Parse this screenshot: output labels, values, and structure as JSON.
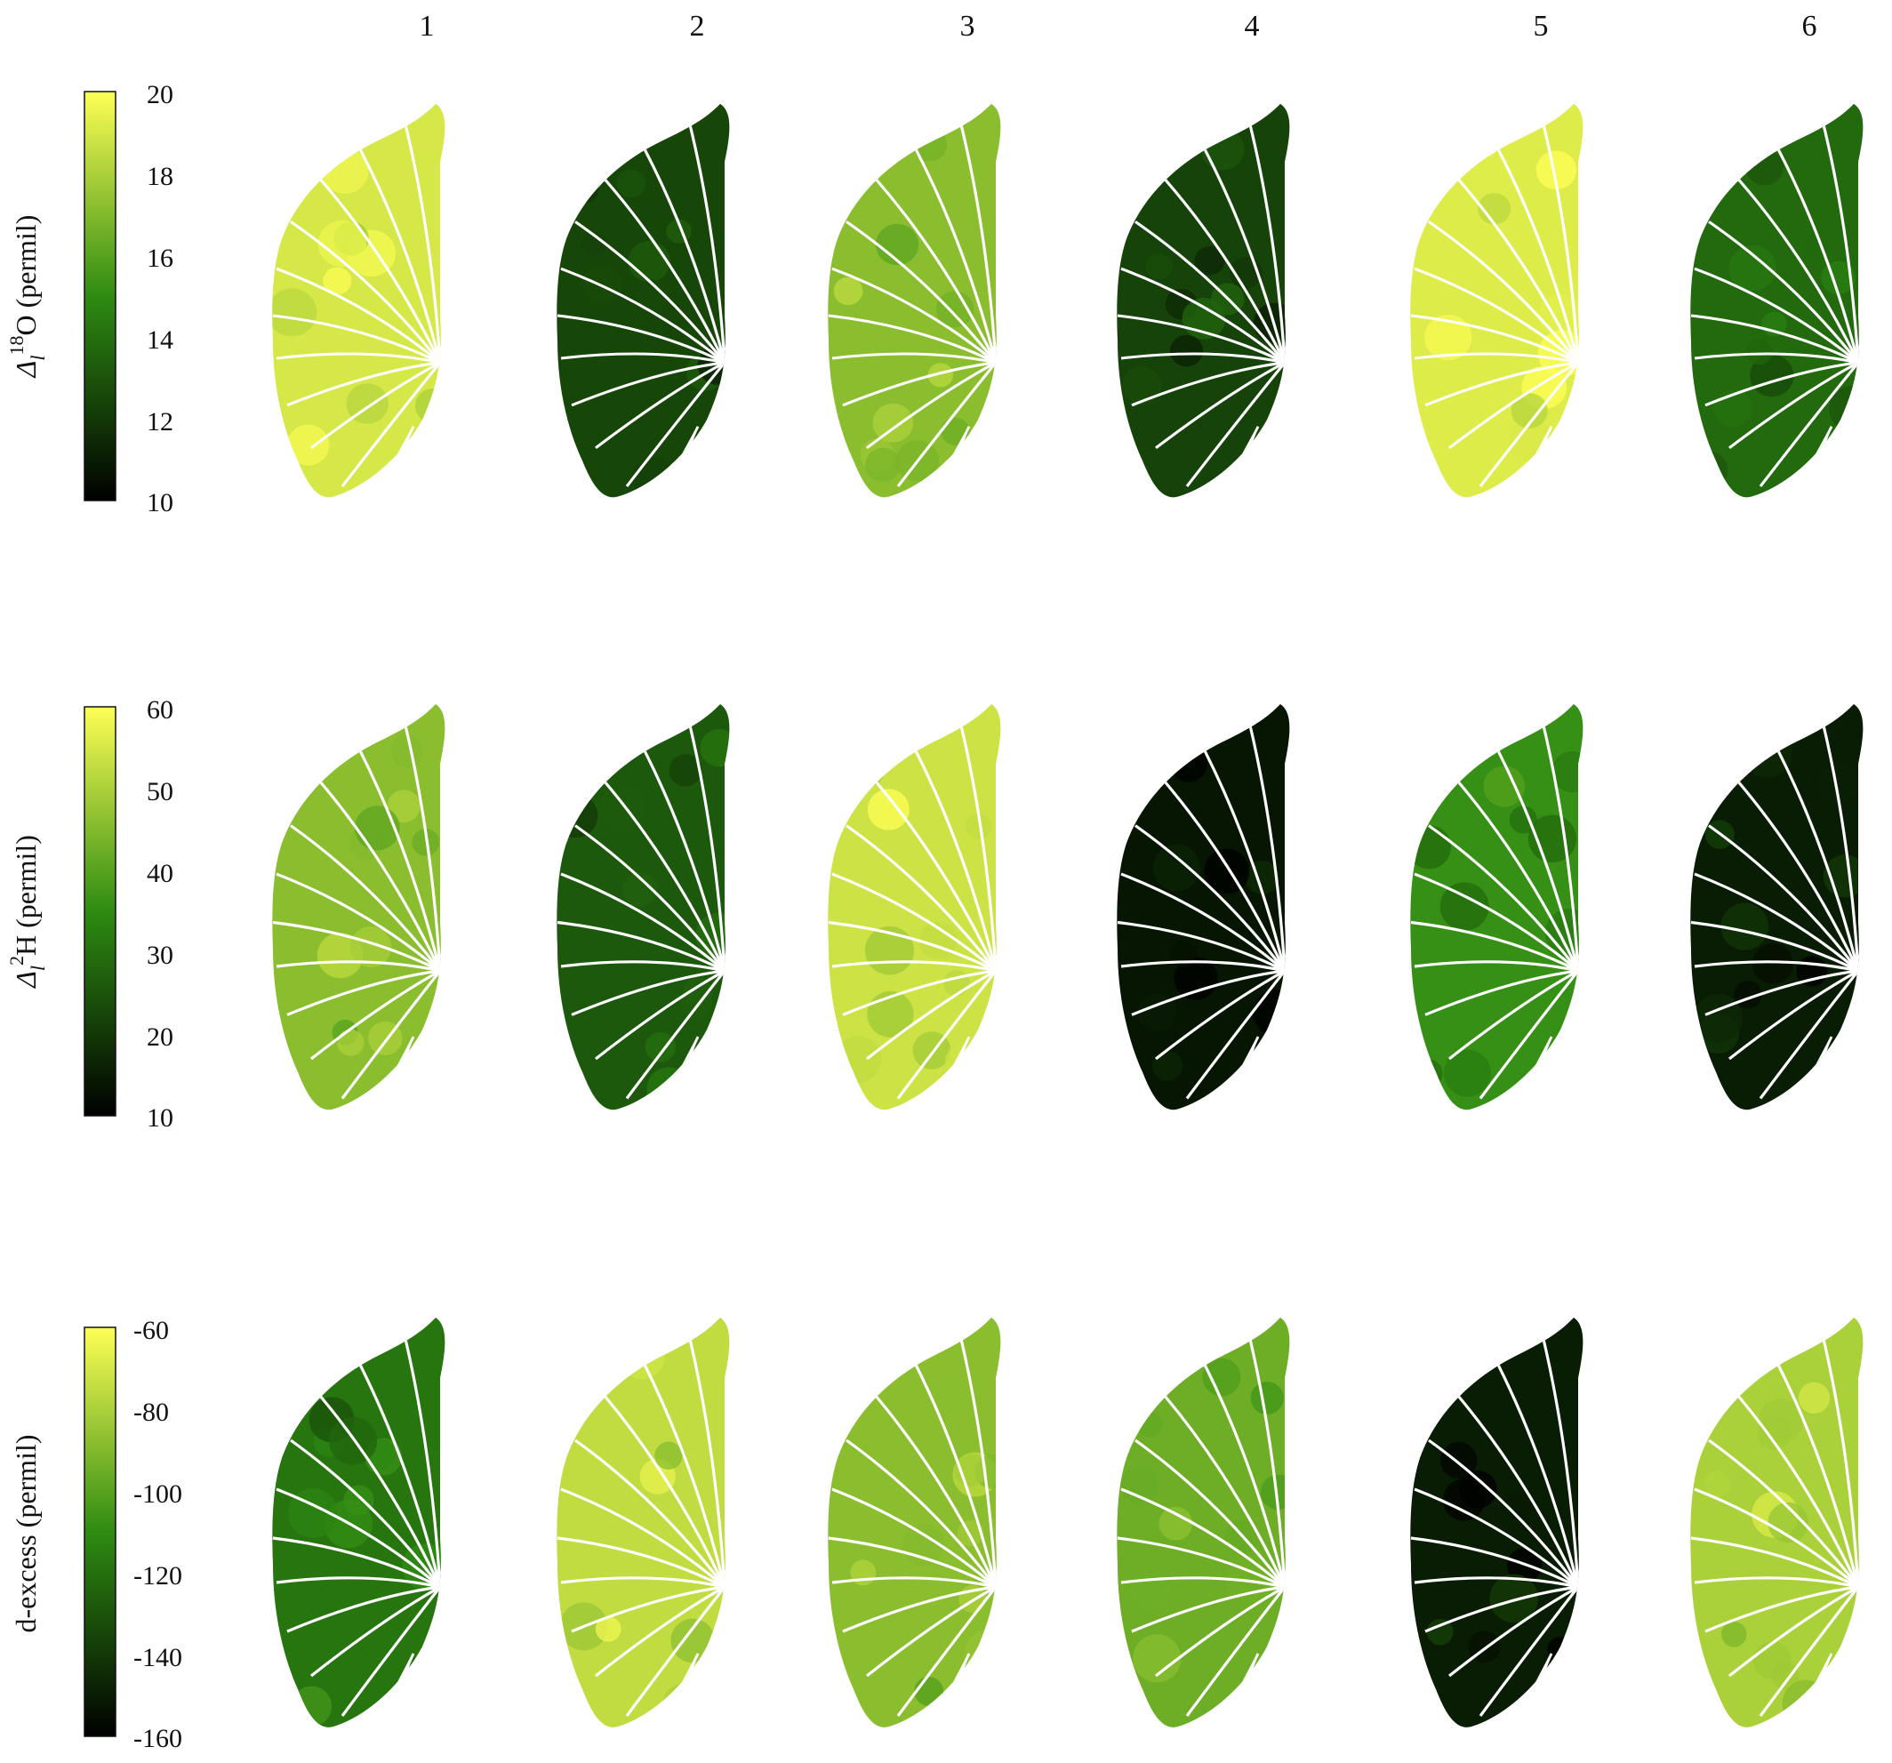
{
  "chart_data": {
    "type": "heatmap",
    "columns": [
      "1",
      "2",
      "3",
      "4",
      "5",
      "6"
    ],
    "colormap": {
      "low": "#000000",
      "mid": "#2e8b12",
      "high": "#ffff55"
    },
    "panels": [
      {
        "label_main": "Δ",
        "label_sup": "18",
        "label_sub": "l",
        "label_rest": "O  (permil)",
        "range": [
          10,
          20
        ],
        "ticks": [
          "20",
          "18",
          "16",
          "14",
          "12",
          "10"
        ],
        "leaf_mean": [
          19.0,
          12.5,
          17.2,
          12.4,
          19.2,
          13.8
        ]
      },
      {
        "label_main": "Δ",
        "label_sup": "2",
        "label_sub": "l",
        "label_rest": "H  (permil)",
        "range": [
          10,
          60
        ],
        "ticks": [
          "60",
          "50",
          "40",
          "30",
          "20",
          "10"
        ],
        "leaf_mean": [
          46,
          26,
          54,
          14,
          36,
          15
        ]
      },
      {
        "label_main": "d-excess  (permil)",
        "label_sup": "",
        "label_sub": "",
        "label_rest": "",
        "range": [
          -160,
          -60
        ],
        "ticks": [
          "-60",
          "-80",
          "-100",
          "-120",
          "-140",
          "-160"
        ],
        "leaf_mean": [
          -118,
          -75,
          -88,
          -95,
          -150,
          -80
        ]
      }
    ]
  }
}
